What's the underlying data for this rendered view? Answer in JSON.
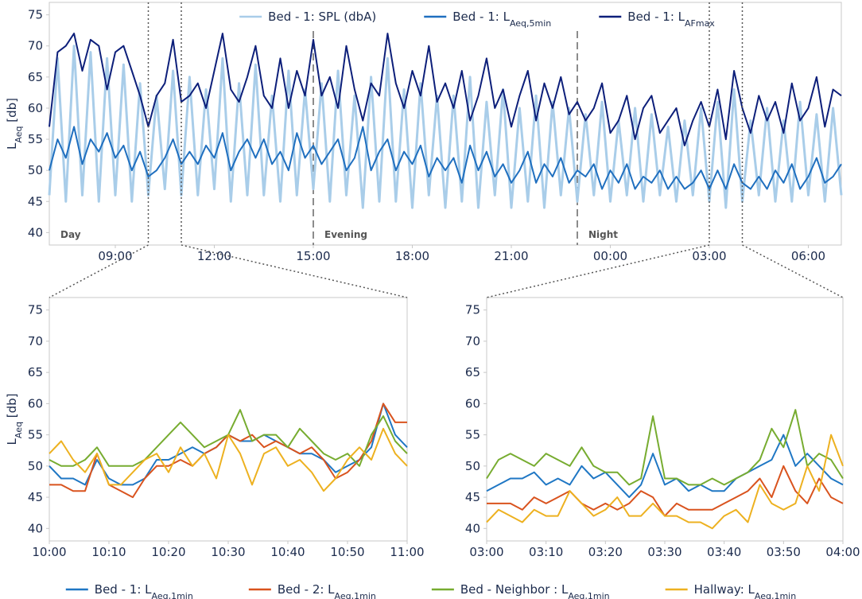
{
  "chart_data": [
    {
      "type": "line",
      "ylabel": {
        "main": "L",
        "sub": "Aeq",
        "rest": " [db]"
      },
      "xlim": [
        420,
        1860
      ],
      "ylim": [
        38,
        77
      ],
      "yticks": [
        40,
        45,
        50,
        55,
        60,
        65,
        70,
        75
      ],
      "xticks": [
        {
          "value": 540,
          "label": "09:00"
        },
        {
          "value": 720,
          "label": "12:00"
        },
        {
          "value": 900,
          "label": "15:00"
        },
        {
          "value": 1080,
          "label": "18:00"
        },
        {
          "value": 1260,
          "label": "21:00"
        },
        {
          "value": 1440,
          "label": "00:00"
        },
        {
          "value": 1620,
          "label": "03:00"
        },
        {
          "value": 1800,
          "label": "06:00"
        }
      ],
      "legend": "top",
      "periods": [
        {
          "label": "Day",
          "start": 420
        },
        {
          "label": "Evening",
          "start": 900
        },
        {
          "label": "Night",
          "start": 1380
        }
      ],
      "x": [
        420,
        435,
        450,
        465,
        480,
        495,
        510,
        525,
        540,
        555,
        570,
        585,
        600,
        615,
        630,
        645,
        660,
        675,
        690,
        705,
        720,
        735,
        750,
        765,
        780,
        795,
        810,
        825,
        840,
        855,
        870,
        885,
        900,
        915,
        930,
        945,
        960,
        975,
        990,
        1005,
        1020,
        1035,
        1050,
        1065,
        1080,
        1095,
        1110,
        1125,
        1140,
        1155,
        1170,
        1185,
        1200,
        1215,
        1230,
        1245,
        1260,
        1275,
        1290,
        1305,
        1320,
        1335,
        1350,
        1365,
        1380,
        1395,
        1410,
        1425,
        1440,
        1455,
        1470,
        1485,
        1500,
        1515,
        1530,
        1545,
        1560,
        1575,
        1590,
        1605,
        1620,
        1635,
        1650,
        1665,
        1680,
        1695,
        1710,
        1725,
        1740,
        1755,
        1770,
        1785,
        1800,
        1815,
        1830,
        1845,
        1860
      ],
      "series": [
        {
          "name": "Bed - 1: SPL (dbA)",
          "color": "#a9cde9",
          "values": [
            46,
            68,
            45,
            70,
            46,
            69,
            45,
            68,
            46,
            67,
            45,
            64,
            46,
            62,
            47,
            66,
            46,
            65,
            46,
            63,
            47,
            68,
            45,
            64,
            46,
            67,
            46,
            62,
            45,
            66,
            46,
            63,
            47,
            64,
            45,
            66,
            46,
            62,
            44,
            65,
            45,
            68,
            45,
            63,
            44,
            64,
            46,
            62,
            44,
            62,
            45,
            65,
            44,
            61,
            46,
            63,
            44,
            60,
            45,
            62,
            44,
            61,
            46,
            60,
            45,
            59,
            46,
            61,
            45,
            58,
            46,
            60,
            45,
            59,
            46,
            57,
            45,
            58,
            46,
            60,
            45,
            61,
            44,
            63,
            45,
            58,
            46,
            60,
            45,
            58,
            45,
            61,
            46,
            59,
            45,
            60,
            46
          ]
        },
        {
          "name": "Bed - 1: L",
          "subscript": "Aeq,5min",
          "color": "#1f6fbf",
          "values": [
            50,
            55,
            52,
            57,
            51,
            55,
            53,
            56,
            52,
            54,
            50,
            53,
            49,
            50,
            52,
            55,
            51,
            53,
            51,
            54,
            52,
            56,
            50,
            53,
            55,
            52,
            55,
            51,
            53,
            50,
            56,
            52,
            54,
            51,
            53,
            55,
            50,
            52,
            57,
            50,
            53,
            55,
            50,
            53,
            51,
            54,
            49,
            52,
            50,
            52,
            48,
            54,
            50,
            53,
            49,
            51,
            48,
            50,
            53,
            48,
            51,
            49,
            52,
            48,
            50,
            49,
            51,
            47,
            50,
            48,
            51,
            47,
            49,
            48,
            50,
            47,
            49,
            47,
            48,
            50,
            47,
            50,
            47,
            51,
            48,
            47,
            49,
            47,
            50,
            48,
            51,
            47,
            49,
            52,
            48,
            49,
            51
          ]
        },
        {
          "name": "Bed - 1: L",
          "subscript": "AFmax",
          "color": "#0d1f7a",
          "values": [
            57,
            69,
            70,
            72,
            66,
            71,
            70,
            63,
            69,
            70,
            66,
            62,
            57,
            62,
            64,
            71,
            61,
            62,
            64,
            60,
            66,
            72,
            63,
            61,
            65,
            70,
            62,
            60,
            68,
            60,
            66,
            62,
            71,
            62,
            65,
            60,
            70,
            63,
            58,
            64,
            62,
            72,
            64,
            60,
            66,
            62,
            70,
            61,
            64,
            60,
            66,
            58,
            62,
            68,
            60,
            63,
            57,
            62,
            66,
            58,
            64,
            60,
            65,
            59,
            61,
            58,
            60,
            64,
            56,
            58,
            62,
            55,
            60,
            62,
            56,
            58,
            60,
            54,
            58,
            61,
            57,
            63,
            55,
            66,
            60,
            56,
            62,
            58,
            61,
            56,
            64,
            58,
            60,
            65,
            57,
            63,
            62
          ]
        }
      ]
    },
    {
      "type": "line",
      "ylabel": {
        "main": "L",
        "sub": "Aeq",
        "rest": " [db]"
      },
      "xlim": [
        600,
        660
      ],
      "ylim": [
        38,
        77
      ],
      "yticks": [
        40,
        45,
        50,
        55,
        60,
        65,
        70,
        75
      ],
      "xticks": [
        {
          "value": 600,
          "label": "10:00"
        },
        {
          "value": 610,
          "label": "10:10"
        },
        {
          "value": 620,
          "label": "10:20"
        },
        {
          "value": 630,
          "label": "10:30"
        },
        {
          "value": 640,
          "label": "10:40"
        },
        {
          "value": 650,
          "label": "10:50"
        },
        {
          "value": 660,
          "label": "11:00"
        }
      ],
      "legend": "bottom",
      "x": [
        600,
        602,
        604,
        606,
        608,
        610,
        612,
        614,
        616,
        618,
        620,
        622,
        624,
        626,
        628,
        630,
        632,
        634,
        636,
        638,
        640,
        642,
        644,
        646,
        648,
        650,
        652,
        654,
        656,
        658,
        660
      ],
      "series": [
        {
          "name": "Bed - 1: L",
          "subscript": "Aeq,1min",
          "color": "#1f77c4",
          "values": [
            50,
            48,
            48,
            47,
            51,
            48,
            47,
            47,
            48,
            51,
            51,
            52,
            53,
            52,
            53,
            55,
            54,
            54,
            55,
            54,
            53,
            52,
            52,
            51,
            49,
            50,
            51,
            53,
            60,
            55,
            53
          ]
        },
        {
          "name": "Bed - 2: L",
          "subscript": "Aeq,1min",
          "color": "#d9531e",
          "values": [
            47,
            47,
            46,
            46,
            52,
            47,
            46,
            45,
            48,
            50,
            50,
            51,
            50,
            52,
            53,
            55,
            54,
            55,
            53,
            54,
            53,
            52,
            53,
            51,
            48,
            49,
            51,
            54,
            60,
            57,
            57
          ]
        },
        {
          "name": "Bed - Neighbor : L",
          "subscript": "Aeq,1min",
          "color": "#77ac30",
          "values": [
            51,
            50,
            50,
            51,
            53,
            50,
            50,
            50,
            51,
            53,
            55,
            57,
            55,
            53,
            54,
            55,
            59,
            54,
            55,
            55,
            53,
            56,
            54,
            52,
            51,
            52,
            50,
            55,
            58,
            54,
            52
          ]
        },
        {
          "name": "Hallway: L",
          "subscript": "Aeq,1min",
          "color": "#edb120",
          "values": [
            52,
            54,
            51,
            49,
            52,
            47,
            47,
            49,
            51,
            52,
            49,
            53,
            50,
            52,
            48,
            55,
            52,
            47,
            52,
            53,
            50,
            51,
            49,
            46,
            48,
            51,
            53,
            51,
            56,
            52,
            50
          ]
        }
      ]
    },
    {
      "type": "line",
      "xlim": [
        180,
        240
      ],
      "ylim": [
        38,
        77
      ],
      "yticks": [
        40,
        45,
        50,
        55,
        60,
        65,
        70,
        75
      ],
      "xticks": [
        {
          "value": 180,
          "label": "03:00"
        },
        {
          "value": 190,
          "label": "03:10"
        },
        {
          "value": 200,
          "label": "03:20"
        },
        {
          "value": 210,
          "label": "03:30"
        },
        {
          "value": 220,
          "label": "03:40"
        },
        {
          "value": 230,
          "label": "03:50"
        },
        {
          "value": 240,
          "label": "04:00"
        }
      ],
      "x": [
        180,
        182,
        184,
        186,
        188,
        190,
        192,
        194,
        196,
        198,
        200,
        202,
        204,
        206,
        208,
        210,
        212,
        214,
        216,
        218,
        220,
        222,
        224,
        226,
        228,
        230,
        232,
        234,
        236,
        238,
        240
      ],
      "series": [
        {
          "color": "#1f77c4",
          "values": [
            46,
            47,
            48,
            48,
            49,
            47,
            48,
            47,
            50,
            48,
            49,
            47,
            45,
            47,
            52,
            47,
            48,
            46,
            47,
            46,
            46,
            48,
            49,
            50,
            51,
            55,
            50,
            52,
            50,
            48,
            47
          ]
        },
        {
          "color": "#d9531e",
          "values": [
            44,
            44,
            44,
            43,
            45,
            44,
            45,
            46,
            44,
            43,
            44,
            43,
            44,
            46,
            45,
            42,
            44,
            43,
            43,
            43,
            44,
            45,
            46,
            48,
            45,
            50,
            46,
            44,
            48,
            45,
            44
          ]
        },
        {
          "color": "#77ac30",
          "values": [
            48,
            51,
            52,
            51,
            50,
            52,
            51,
            50,
            53,
            50,
            49,
            49,
            47,
            48,
            58,
            48,
            48,
            47,
            47,
            48,
            47,
            48,
            49,
            51,
            56,
            53,
            59,
            50,
            52,
            51,
            48
          ]
        },
        {
          "color": "#edb120",
          "values": [
            41,
            43,
            42,
            41,
            43,
            42,
            42,
            46,
            44,
            42,
            43,
            45,
            42,
            42,
            44,
            42,
            42,
            41,
            41,
            40,
            42,
            43,
            41,
            47,
            44,
            43,
            44,
            50,
            46,
            55,
            50
          ]
        }
      ]
    }
  ]
}
